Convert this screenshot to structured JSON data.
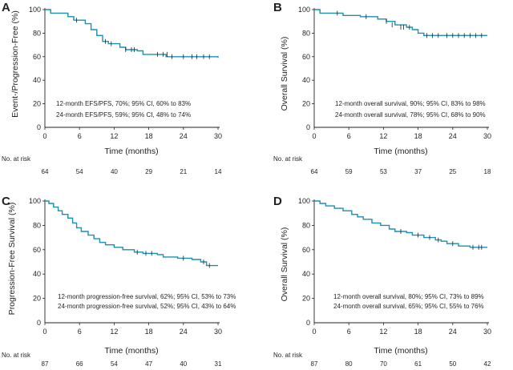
{
  "figure": {
    "risk_label": "No. at risk",
    "x_axis_title": "Time (months)",
    "line_color": "#1b8fb4"
  },
  "chart_data": [
    {
      "panel": "A",
      "type": "line",
      "subtype": "kaplan-meier",
      "ylabel": "Event-/Progression-Free (%)",
      "xlabel": "Time (months)",
      "xlim": [
        0,
        30
      ],
      "ylim": [
        0,
        100
      ],
      "x_ticks": [
        0,
        6,
        12,
        18,
        24,
        30
      ],
      "y_ticks": [
        20,
        40,
        60,
        80,
        100
      ],
      "steps": [
        [
          0,
          100
        ],
        [
          1,
          97
        ],
        [
          4,
          94
        ],
        [
          5,
          91
        ],
        [
          7,
          88
        ],
        [
          8,
          83
        ],
        [
          9,
          78
        ],
        [
          10,
          73
        ],
        [
          11,
          71
        ],
        [
          13,
          68
        ],
        [
          14,
          66
        ],
        [
          16,
          65
        ],
        [
          17,
          62
        ],
        [
          21,
          60
        ],
        [
          30,
          59
        ]
      ],
      "censors": [
        [
          5.5,
          91
        ],
        [
          10.5,
          73
        ],
        [
          11.5,
          71
        ],
        [
          14,
          66
        ],
        [
          15,
          66
        ],
        [
          15.5,
          66
        ],
        [
          19.5,
          62
        ],
        [
          20.5,
          62
        ],
        [
          21.2,
          62
        ],
        [
          22,
          60
        ],
        [
          24,
          60
        ],
        [
          25.5,
          60
        ],
        [
          26.3,
          60
        ],
        [
          27.5,
          60
        ],
        [
          28.5,
          60
        ]
      ],
      "at_risk": [
        64,
        54,
        40,
        29,
        21,
        14
      ],
      "annotations": [
        "12-month EFS/PFS, 70%; 95% CI, 60% to 83%",
        "24-month EFS/PFS, 59%; 95% CI, 48% to 74%"
      ]
    },
    {
      "panel": "B",
      "type": "line",
      "subtype": "kaplan-meier",
      "ylabel": "Overall Survival (%)",
      "xlabel": "Time (months)",
      "xlim": [
        0,
        30
      ],
      "ylim": [
        0,
        100
      ],
      "x_ticks": [
        0,
        6,
        12,
        18,
        24,
        30
      ],
      "y_ticks": [
        20,
        40,
        60,
        80,
        100
      ],
      "steps": [
        [
          0,
          100
        ],
        [
          1,
          97
        ],
        [
          5,
          95
        ],
        [
          8,
          94
        ],
        [
          11,
          92
        ],
        [
          12.5,
          90
        ],
        [
          14,
          87
        ],
        [
          16,
          85
        ],
        [
          17,
          83
        ],
        [
          18,
          80
        ],
        [
          19,
          78
        ],
        [
          30,
          78
        ]
      ],
      "censors": [
        [
          4,
          97
        ],
        [
          9,
          94
        ],
        [
          12.5,
          90
        ],
        [
          13.5,
          87
        ],
        [
          15,
          85
        ],
        [
          15.5,
          85
        ],
        [
          16.5,
          85
        ],
        [
          19.5,
          78
        ],
        [
          20.5,
          78
        ],
        [
          21.5,
          78
        ],
        [
          23,
          78
        ],
        [
          24,
          78
        ],
        [
          25,
          78
        ],
        [
          26,
          78
        ],
        [
          27,
          78
        ],
        [
          28,
          78
        ],
        [
          29,
          78
        ]
      ],
      "at_risk": [
        64,
        59,
        53,
        37,
        25,
        18
      ],
      "annotations": [
        "12-month overall survival, 90%; 95% CI, 83% to 98%",
        "24-month overall survival, 78%; 95% CI, 68% to 90%"
      ]
    },
    {
      "panel": "C",
      "type": "line",
      "subtype": "kaplan-meier",
      "ylabel": "Progression-Free Survival (%)",
      "xlabel": "Time (months)",
      "xlim": [
        0,
        30
      ],
      "ylim": [
        0,
        100
      ],
      "x_ticks": [
        0,
        6,
        12,
        18,
        24,
        30
      ],
      "y_ticks": [
        20,
        40,
        60,
        80,
        100
      ],
      "steps": [
        [
          0,
          100
        ],
        [
          0.7,
          98
        ],
        [
          1.5,
          95
        ],
        [
          2.3,
          92
        ],
        [
          3,
          89
        ],
        [
          4,
          86
        ],
        [
          4.8,
          82
        ],
        [
          5.5,
          78
        ],
        [
          6.3,
          75
        ],
        [
          7.5,
          72
        ],
        [
          8.5,
          69
        ],
        [
          9.5,
          66
        ],
        [
          10.5,
          64
        ],
        [
          12,
          62
        ],
        [
          13.5,
          60
        ],
        [
          15.5,
          58
        ],
        [
          17,
          57
        ],
        [
          19.5,
          56
        ],
        [
          20.5,
          54
        ],
        [
          23,
          53
        ],
        [
          25.5,
          52
        ],
        [
          27,
          50
        ],
        [
          28,
          47
        ],
        [
          30,
          47
        ]
      ],
      "censors": [
        [
          16,
          58
        ],
        [
          17.5,
          57
        ],
        [
          18.5,
          57
        ],
        [
          24,
          53
        ],
        [
          27.5,
          50
        ],
        [
          28.5,
          47
        ]
      ],
      "at_risk": [
        87,
        66,
        54,
        47,
        40,
        31
      ],
      "annotations": [
        "12-month progression-free survival, 62%; 95% CI, 53% to 73%",
        "24-month progression-free survival, 52%; 95% CI, 43% to 64%"
      ]
    },
    {
      "panel": "D",
      "type": "line",
      "subtype": "kaplan-meier",
      "ylabel": "Overall Survival (%)",
      "xlabel": "Time (months)",
      "xlim": [
        0,
        30
      ],
      "ylim": [
        0,
        100
      ],
      "x_ticks": [
        0,
        6,
        12,
        18,
        24,
        30
      ],
      "y_ticks": [
        20,
        40,
        60,
        80,
        100
      ],
      "steps": [
        [
          0,
          100
        ],
        [
          1,
          98
        ],
        [
          2,
          96
        ],
        [
          3.5,
          94
        ],
        [
          5,
          92
        ],
        [
          6.5,
          89
        ],
        [
          7.5,
          87
        ],
        [
          8.5,
          85
        ],
        [
          10,
          82
        ],
        [
          11.5,
          80
        ],
        [
          13,
          77
        ],
        [
          14,
          75
        ],
        [
          16,
          74
        ],
        [
          17,
          72
        ],
        [
          19,
          70
        ],
        [
          21,
          68
        ],
        [
          22,
          67
        ],
        [
          23,
          65
        ],
        [
          25,
          63
        ],
        [
          27,
          62
        ],
        [
          30,
          62
        ]
      ],
      "censors": [
        [
          15,
          75
        ],
        [
          18,
          72
        ],
        [
          20,
          70
        ],
        [
          21.5,
          68
        ],
        [
          24,
          65
        ],
        [
          27.5,
          62
        ],
        [
          28.5,
          62
        ],
        [
          29,
          62
        ]
      ],
      "at_risk": [
        87,
        80,
        70,
        61,
        50,
        42
      ],
      "annotations": [
        "12-month overall survival, 80%; 95% CI, 73% to 89%",
        "24-month overall survival, 65%; 95% CI, 55% to 76%"
      ]
    }
  ]
}
